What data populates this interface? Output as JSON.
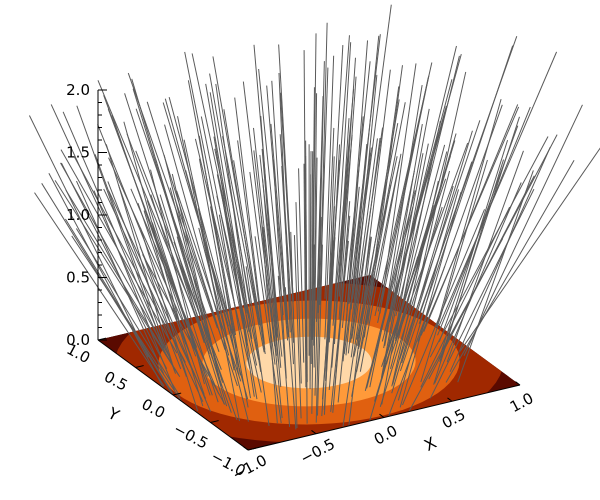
{
  "chart_data": {
    "type": "surface",
    "title": "",
    "x_axis": {
      "label": "X",
      "range": [
        -1.0,
        1.0
      ],
      "ticks": [
        -1.0,
        -0.5,
        0.0,
        0.5,
        1.0
      ],
      "tick_labels": [
        "−1.0",
        "−0.5",
        "0.0",
        "0.5",
        "1.0"
      ]
    },
    "y_axis": {
      "label": "Y",
      "range": [
        -1.0,
        1.0
      ],
      "ticks": [
        -1.0,
        -0.5,
        0.0,
        0.5,
        1.0
      ],
      "tick_labels": [
        "−1.0",
        "−0.5",
        "0.0",
        "0.5",
        "1.0"
      ]
    },
    "z_axis": {
      "label": "",
      "range": [
        0.0,
        2.0
      ],
      "ticks": [
        0.0,
        0.5,
        1.0,
        1.5,
        2.0
      ],
      "tick_labels": [
        "0.0",
        "0.5",
        "1.0",
        "1.5",
        "2.0"
      ]
    },
    "grid": false,
    "legend": "none",
    "surface": {
      "description_type": "filled-contour heat map on XY plane",
      "colormap": "dark red to orange to pale yellow",
      "colors": [
        "#1a0000",
        "#5a0a00",
        "#a02800",
        "#e06010",
        "#ff9a3a",
        "#ffd8a8"
      ],
      "peak_at": [
        0.0,
        0.0
      ]
    },
    "vectors": {
      "color": "#5a5a5a",
      "style": "radiating line segments from the XY plane, z extent up to 2.0"
    }
  }
}
